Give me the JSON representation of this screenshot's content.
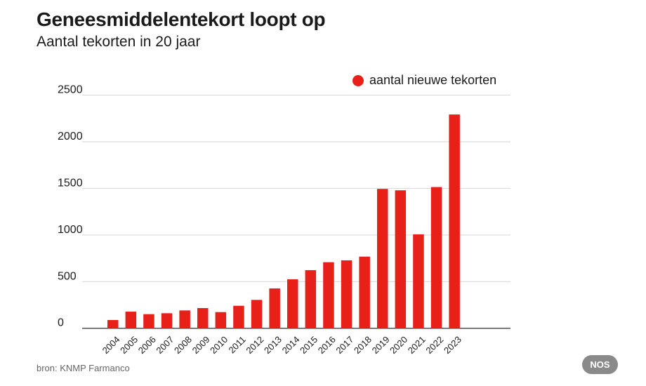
{
  "title": "Geneesmiddelentekort loopt op",
  "subtitle": "Aantal tekorten in 20 jaar",
  "source": "bron: KNMP Farmanco",
  "logo": "NOS",
  "chart_data": {
    "type": "bar",
    "title": "Geneesmiddelentekort loopt op",
    "subtitle": "Aantal tekorten in 20 jaar",
    "categories": [
      "2004",
      "2005",
      "2006",
      "2007",
      "2008",
      "2009",
      "2010",
      "2011",
      "2012",
      "2013",
      "2014",
      "2015",
      "2016",
      "2017",
      "2018",
      "2019",
      "2020",
      "2021",
      "2022",
      "2023"
    ],
    "series": [
      {
        "name": "aantal nieuwe tekorten",
        "values": [
          88,
          178,
          151,
          161,
          191,
          216,
          173,
          241,
          304,
          427,
          525,
          623,
          708,
          728,
          768,
          1494,
          1479,
          1007,
          1514,
          2292
        ],
        "color": "#e8201a"
      }
    ],
    "yticks": [
      0,
      500,
      1000,
      1500,
      2000,
      2500
    ],
    "ylim": [
      0,
      2500
    ],
    "grid": true,
    "legend_position": "top-right"
  }
}
